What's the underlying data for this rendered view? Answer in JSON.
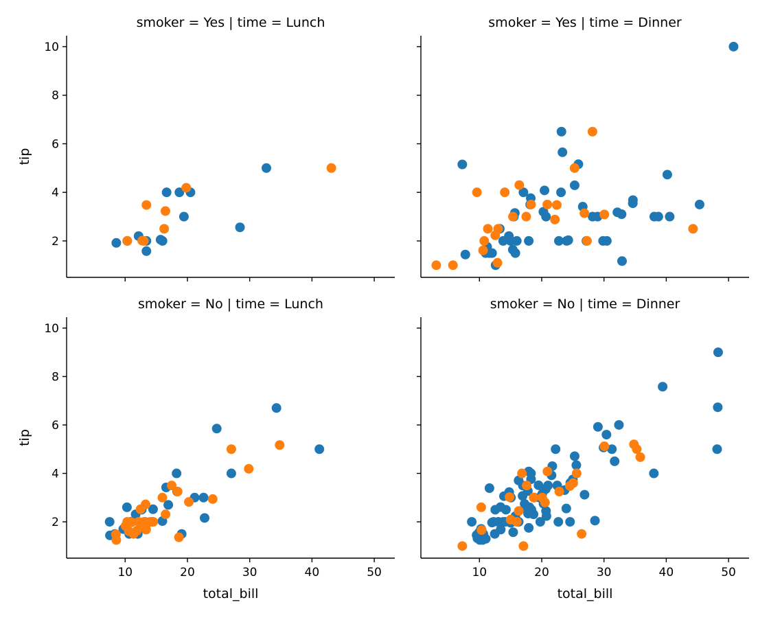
{
  "chart_data": {
    "type": "scatter",
    "colors": {
      "series_a": "#1f77b4",
      "series_b": "#ff7f0e"
    },
    "x_ticks": [
      10,
      20,
      30,
      40,
      50
    ],
    "y_ticks": [
      2,
      4,
      6,
      8,
      10
    ],
    "xlim": [
      0.6,
      53.3
    ],
    "ylim": [
      0.5,
      10.45
    ],
    "xlabel": "total_bill",
    "ylabel": "tip",
    "panels": [
      {
        "title": "smoker = Yes | time = Lunch",
        "series_a": [
          [
            8.58,
            1.92
          ],
          [
            10.34,
            2.0
          ],
          [
            12.16,
            2.2
          ],
          [
            13.42,
            1.58
          ],
          [
            13.42,
            2.0
          ],
          [
            15.69,
            2.05
          ],
          [
            16.0,
            2.0
          ],
          [
            16.66,
            4.0
          ],
          [
            18.71,
            4.0
          ],
          [
            19.44,
            3.0
          ],
          [
            20.49,
            4.0
          ],
          [
            28.44,
            2.56
          ],
          [
            32.68,
            5.0
          ]
        ],
        "series_b": [
          [
            10.34,
            2.0
          ],
          [
            12.74,
            2.01
          ],
          [
            13.0,
            2.0
          ],
          [
            13.42,
            3.48
          ],
          [
            16.27,
            2.5
          ],
          [
            16.47,
            3.23
          ],
          [
            19.81,
            4.19
          ],
          [
            43.11,
            5.0
          ]
        ]
      },
      {
        "title": "smoker = Yes | time = Dinner",
        "series_a": [
          [
            7.25,
            5.15
          ],
          [
            7.74,
            1.44
          ],
          [
            11.0,
            1.5
          ],
          [
            11.24,
            1.76
          ],
          [
            11.59,
            1.5
          ],
          [
            12.03,
            1.5
          ],
          [
            12.6,
            1.0
          ],
          [
            13.27,
            2.5
          ],
          [
            13.81,
            2.0
          ],
          [
            14.73,
            2.2
          ],
          [
            15.0,
            2.0
          ],
          [
            15.36,
            1.64
          ],
          [
            15.48,
            3.0
          ],
          [
            15.53,
            3.0
          ],
          [
            15.69,
            3.15
          ],
          [
            15.77,
            1.5
          ],
          [
            16.0,
            2.0
          ],
          [
            17.07,
            4.0
          ],
          [
            17.92,
            2.0
          ],
          [
            18.15,
            3.5
          ],
          [
            18.24,
            3.76
          ],
          [
            20.27,
            3.2
          ],
          [
            20.45,
            4.08
          ],
          [
            20.69,
            3.0
          ],
          [
            22.76,
            2.0
          ],
          [
            23.17,
            6.5
          ],
          [
            23.33,
            5.65
          ],
          [
            23.1,
            4.0
          ],
          [
            24.01,
            2.0
          ],
          [
            24.27,
            2.03
          ],
          [
            25.29,
            4.29
          ],
          [
            25.89,
            5.16
          ],
          [
            26.59,
            3.41
          ],
          [
            27.18,
            2.0
          ],
          [
            28.17,
            3.0
          ],
          [
            28.97,
            3.0
          ],
          [
            29.85,
            2.0
          ],
          [
            30.46,
            2.0
          ],
          [
            32.15,
            3.18
          ],
          [
            32.9,
            1.17
          ],
          [
            32.83,
            3.1
          ],
          [
            34.63,
            3.55
          ],
          [
            34.65,
            3.68
          ],
          [
            38.07,
            3.0
          ],
          [
            38.73,
            3.0
          ],
          [
            40.17,
            4.73
          ],
          [
            40.55,
            3.0
          ],
          [
            45.35,
            3.5
          ],
          [
            50.81,
            10.0
          ]
        ],
        "series_b": [
          [
            3.07,
            1.0
          ],
          [
            5.75,
            1.0
          ],
          [
            9.6,
            4.0
          ],
          [
            10.59,
            1.61
          ],
          [
            10.77,
            2.0
          ],
          [
            11.35,
            2.5
          ],
          [
            12.54,
            2.23
          ],
          [
            12.9,
            1.1
          ],
          [
            13.0,
            2.5
          ],
          [
            14.07,
            4.0
          ],
          [
            15.38,
            3.0
          ],
          [
            16.4,
            4.3
          ],
          [
            17.51,
            3.0
          ],
          [
            18.29,
            3.5
          ],
          [
            20.9,
            3.5
          ],
          [
            22.12,
            2.88
          ],
          [
            22.42,
            3.48
          ],
          [
            25.28,
            5.0
          ],
          [
            26.86,
            3.14
          ],
          [
            27.28,
            2.0
          ],
          [
            28.15,
            6.5
          ],
          [
            30.06,
            3.09
          ],
          [
            44.3,
            2.5
          ]
        ]
      },
      {
        "title": "smoker = No | time = Lunch",
        "series_a": [
          [
            7.51,
            2.0
          ],
          [
            7.56,
            1.44
          ],
          [
            8.35,
            1.5
          ],
          [
            9.7,
            1.7
          ],
          [
            10.07,
            1.83
          ],
          [
            10.29,
            2.6
          ],
          [
            10.65,
            1.5
          ],
          [
            10.88,
            2.0
          ],
          [
            11.69,
            2.31
          ],
          [
            12.03,
            1.5
          ],
          [
            12.66,
            2.5
          ],
          [
            13.16,
            2.0
          ],
          [
            14.31,
            2.0
          ],
          [
            14.48,
            2.52
          ],
          [
            15.98,
            2.03
          ],
          [
            16.58,
            3.42
          ],
          [
            16.93,
            2.7
          ],
          [
            18.26,
            4.0
          ],
          [
            18.35,
            3.25
          ],
          [
            19.08,
            1.5
          ],
          [
            21.16,
            3.0
          ],
          [
            22.6,
            3.0
          ],
          [
            22.76,
            2.16
          ],
          [
            24.71,
            5.85
          ],
          [
            27.05,
            4.0
          ],
          [
            34.3,
            6.7
          ],
          [
            41.19,
            5.0
          ]
        ],
        "series_b": [
          [
            8.52,
            1.48
          ],
          [
            8.58,
            1.25
          ],
          [
            10.07,
            1.83
          ],
          [
            10.33,
            2.0
          ],
          [
            10.6,
            1.61
          ],
          [
            11.02,
            1.98
          ],
          [
            11.35,
            1.5
          ],
          [
            11.87,
            1.63
          ],
          [
            12.16,
            2.0
          ],
          [
            12.43,
            1.8
          ],
          [
            12.48,
            2.52
          ],
          [
            13.03,
            2.0
          ],
          [
            13.28,
            2.72
          ],
          [
            13.37,
            1.68
          ],
          [
            14.0,
            2.0
          ],
          [
            14.52,
            2.0
          ],
          [
            15.98,
            3.0
          ],
          [
            16.49,
            2.31
          ],
          [
            17.47,
            3.5
          ],
          [
            18.43,
            3.25
          ],
          [
            18.64,
            1.36
          ],
          [
            20.23,
            2.82
          ],
          [
            24.06,
            2.94
          ],
          [
            27.05,
            5.0
          ],
          [
            29.85,
            4.19
          ],
          [
            34.81,
            5.17
          ]
        ]
      },
      {
        "title": "smoker = No | time = Dinner",
        "series_a": [
          [
            8.77,
            2.0
          ],
          [
            9.55,
            1.45
          ],
          [
            9.68,
            1.32
          ],
          [
            9.94,
            1.56
          ],
          [
            10.07,
            1.25
          ],
          [
            10.27,
            1.71
          ],
          [
            10.33,
            1.67
          ],
          [
            10.34,
            1.66
          ],
          [
            10.51,
            1.25
          ],
          [
            10.63,
            1.5
          ],
          [
            11.02,
            1.3
          ],
          [
            11.61,
            3.39
          ],
          [
            12.02,
            1.97
          ],
          [
            12.26,
            2.0
          ],
          [
            12.46,
            1.5
          ],
          [
            12.54,
            2.5
          ],
          [
            13.0,
            2.0
          ],
          [
            13.03,
            2.0
          ],
          [
            13.39,
            2.61
          ],
          [
            13.42,
            1.68
          ],
          [
            13.81,
            2.0
          ],
          [
            13.94,
            3.06
          ],
          [
            14.15,
            2.0
          ],
          [
            14.26,
            2.5
          ],
          [
            14.78,
            3.23
          ],
          [
            15.04,
            1.96
          ],
          [
            15.06,
            3.0
          ],
          [
            15.42,
            1.57
          ],
          [
            15.77,
            2.23
          ],
          [
            16.21,
            2.0
          ],
          [
            16.29,
            3.71
          ],
          [
            16.31,
            2.0
          ],
          [
            16.93,
            3.07
          ],
          [
            16.97,
            3.5
          ],
          [
            17.26,
            2.74
          ],
          [
            17.46,
            2.54
          ],
          [
            17.78,
            3.27
          ],
          [
            17.81,
            2.34
          ],
          [
            17.92,
            4.08
          ],
          [
            17.92,
            1.75
          ],
          [
            18.04,
            2.6
          ],
          [
            18.28,
            4.0
          ],
          [
            18.29,
            3.76
          ],
          [
            18.35,
            2.5
          ],
          [
            18.69,
            2.31
          ],
          [
            18.78,
            3.0
          ],
          [
            19.49,
            3.51
          ],
          [
            19.65,
            3.0
          ],
          [
            19.77,
            2.0
          ],
          [
            20.08,
            3.15
          ],
          [
            20.29,
            2.75
          ],
          [
            20.65,
            3.35
          ],
          [
            20.69,
            2.45
          ],
          [
            20.76,
            2.24
          ],
          [
            21.01,
            3.5
          ],
          [
            21.58,
            3.92
          ],
          [
            21.7,
            4.3
          ],
          [
            22.23,
            5.0
          ],
          [
            22.49,
            3.5
          ],
          [
            22.67,
            2.0
          ],
          [
            23.68,
            3.31
          ],
          [
            23.95,
            2.55
          ],
          [
            24.55,
            2.0
          ],
          [
            24.59,
            3.61
          ],
          [
            25.0,
            3.75
          ],
          [
            25.29,
            4.71
          ],
          [
            25.56,
            4.34
          ],
          [
            26.88,
            3.12
          ],
          [
            28.55,
            2.05
          ],
          [
            29.03,
            5.92
          ],
          [
            29.93,
            5.07
          ],
          [
            30.4,
            5.6
          ],
          [
            31.27,
            5.0
          ],
          [
            31.71,
            4.5
          ],
          [
            32.4,
            6.0
          ],
          [
            38.01,
            4.0
          ],
          [
            39.42,
            7.58
          ],
          [
            48.17,
            5.0
          ],
          [
            48.27,
            6.73
          ],
          [
            48.33,
            9.0
          ]
        ],
        "series_b": [
          [
            7.25,
            1.0
          ],
          [
            10.29,
            2.6
          ],
          [
            10.34,
            1.66
          ],
          [
            14.83,
            3.02
          ],
          [
            15.01,
            2.09
          ],
          [
            16.0,
            2.0
          ],
          [
            16.32,
            2.45
          ],
          [
            16.82,
            4.0
          ],
          [
            17.07,
            1.0
          ],
          [
            17.59,
            3.5
          ],
          [
            18.71,
            3.0
          ],
          [
            20.08,
            3.0
          ],
          [
            20.53,
            2.8
          ],
          [
            20.92,
            4.08
          ],
          [
            22.82,
            3.25
          ],
          [
            24.52,
            3.48
          ],
          [
            25.06,
            3.6
          ],
          [
            25.61,
            4.0
          ],
          [
            26.41,
            1.5
          ],
          [
            30.06,
            5.12
          ],
          [
            34.81,
            5.2
          ],
          [
            35.26,
            5.0
          ],
          [
            35.83,
            4.67
          ]
        ]
      }
    ]
  }
}
